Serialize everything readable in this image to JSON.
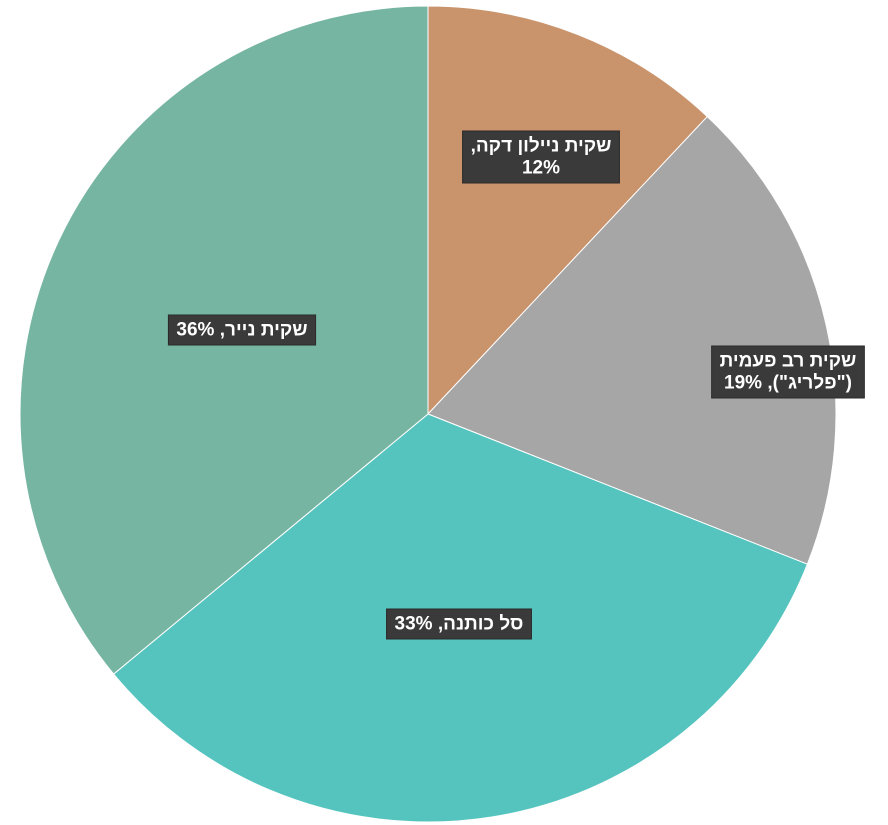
{
  "chart_data": {
    "type": "pie",
    "start_angle_deg": 0,
    "direction": "clockwise",
    "slices": [
      {
        "name": "שקית ניילון דקה",
        "value": 12,
        "label_lines": [
          "שקית ניילון דקה,",
          "12%"
        ],
        "color": "#C9936C"
      },
      {
        "name": "שקית רב פעמית (\"פלריג\")",
        "value": 19,
        "label_lines": [
          "שקית רב פעמית",
          "(\"פלריג\"), 19%"
        ],
        "color": "#A6A6A6"
      },
      {
        "name": "סל כותנה",
        "value": 33,
        "label_lines": [
          "סל כותנה, 33%"
        ],
        "color": "#55C4BE"
      },
      {
        "name": "שקית נייר",
        "value": 36,
        "label_lines": [
          "שקית נייר, 36%"
        ],
        "color": "#77B5A3"
      }
    ]
  }
}
